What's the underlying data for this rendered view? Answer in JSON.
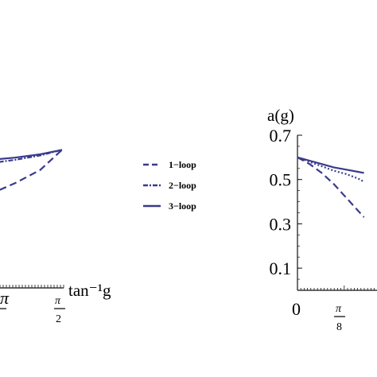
{
  "colors": {
    "series": "#3a3a8c",
    "axis": "#111111"
  },
  "legend": {
    "placement": "center",
    "entries": [
      "1−loop",
      "2−loop",
      "3−loop"
    ]
  },
  "chart_data": [
    {
      "type": "line",
      "partially_visible": "right portion only",
      "xlabel": "tan⁻¹g",
      "x_ticks_visible": [
        {
          "frac_num": "π",
          "frac_den": ""
        },
        {
          "frac_num": "π",
          "frac_den": "2"
        }
      ],
      "xlim_right": 1.5708,
      "series": [
        {
          "name": "1−loop",
          "style": "dashed",
          "x": [
            1.0,
            1.2,
            1.4,
            1.5708
          ],
          "y": [
            0.42,
            0.47,
            0.53,
            0.62
          ]
        },
        {
          "name": "2−loop",
          "style": "dash-dot",
          "x": [
            1.0,
            1.2,
            1.4,
            1.5708
          ],
          "y": [
            0.56,
            0.575,
            0.595,
            0.62
          ]
        },
        {
          "name": "3−loop",
          "style": "solid",
          "x": [
            1.0,
            1.2,
            1.4,
            1.5708
          ],
          "y": [
            0.575,
            0.585,
            0.6,
            0.62
          ]
        }
      ]
    },
    {
      "type": "line",
      "partially_visible": "left portion only",
      "ylabel": "a(g)",
      "ylim": [
        0.0,
        0.7
      ],
      "y_ticks": [
        "0.1",
        "0.3",
        "0.5",
        "0.7"
      ],
      "x_ticks_visible": [
        {
          "label": "0"
        },
        {
          "frac_num": "π",
          "frac_den": "8"
        }
      ],
      "series": [
        {
          "name": "1−loop",
          "style": "dashed",
          "x": [
            0.0,
            0.1,
            0.2,
            0.3,
            0.4,
            0.5,
            0.55
          ],
          "y": [
            0.6,
            0.57,
            0.53,
            0.48,
            0.42,
            0.36,
            0.33
          ]
        },
        {
          "name": "2−loop",
          "style": "dotted",
          "x": [
            0.0,
            0.1,
            0.2,
            0.3,
            0.4,
            0.5,
            0.55
          ],
          "y": [
            0.6,
            0.58,
            0.56,
            0.54,
            0.525,
            0.505,
            0.49
          ]
        },
        {
          "name": "3−loop",
          "style": "solid",
          "x": [
            0.0,
            0.1,
            0.2,
            0.3,
            0.4,
            0.5,
            0.55
          ],
          "y": [
            0.6,
            0.585,
            0.57,
            0.555,
            0.545,
            0.535,
            0.53
          ]
        }
      ]
    }
  ]
}
